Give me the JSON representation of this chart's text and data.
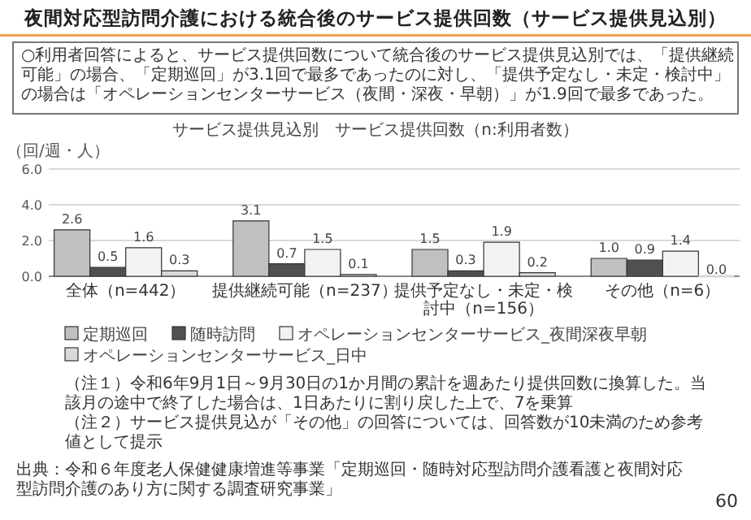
{
  "chart_data": {
    "type": "bar",
    "title": "夜間対応型訪問介護における統合後のサービス提供回数（サービス提供見込別）",
    "subtitle": "サービス提供見込別　サービス提供回数（n:利用者数）",
    "ylabel": "（回/週・人）",
    "categories": [
      "全体（n=442）",
      "提供継続可能（n=237）",
      "提供予定なし・未定・検討中（n=156）",
      "その他（n=6）"
    ],
    "series": [
      {
        "name": "定期巡回",
        "color": "#c0c0c0",
        "values": [
          2.6,
          3.1,
          1.5,
          1.0
        ],
        "value_labels": [
          "2.6",
          "3.1",
          "1.5",
          "1.0"
        ]
      },
      {
        "name": "随時訪問",
        "color": "#505050",
        "values": [
          0.5,
          0.7,
          0.3,
          0.9
        ],
        "value_labels": [
          "0.5",
          "0.7",
          "0.3",
          "0.9"
        ]
      },
      {
        "name": "オペレーションセンターサービス_夜間深夜早朝",
        "color": "#f2f2f2",
        "values": [
          1.6,
          1.5,
          1.9,
          1.4
        ],
        "value_labels": [
          "1.6",
          "1.5",
          "1.9",
          "1.4"
        ]
      },
      {
        "name": "オペレーションセンターサービス_日中",
        "color": "#d9d9d9",
        "values": [
          0.3,
          0.1,
          0.2,
          0.0
        ],
        "value_labels": [
          "0.3",
          "0.1",
          "0.2",
          "0.0"
        ]
      }
    ],
    "ylim": [
      0,
      6
    ],
    "yticks": [
      {
        "value": 0,
        "label": "0.0"
      },
      {
        "value": 2,
        "label": "2.0"
      },
      {
        "value": 4,
        "label": "4.0"
      },
      {
        "value": 6,
        "label": "6.0"
      }
    ],
    "grid": "y",
    "legend": "bottom",
    "annotations": [
      "○利用者回答によると、サービス提供回数について統合後のサービス提供見込別では、「提供継続可能」の場合、「定期巡回」が3.1回で最多であったのに対し、「提供予定なし・未定・検討中」の場合は「オペレーションセンターサービス（夜間・深夜・早朝）」が1.9回で最多であった。",
      "（注１）令和6年9月1日～9月30日の1か月間の累計を週あたり提供回数に換算した。当該月の途中で終了した場合は、1日あたりに割り戻した上で、7を乗算",
      "（注２）サービス提供見込が「その他」の回答については、回答数が10未満のため参考値として提示",
      "出典：令和６年度老人保健健康増進等事業「定期巡回・随時対応型訪問介護看護と夜間対応型訪問介護のあり方に関する調査研究事業」",
      "60"
    ]
  }
}
